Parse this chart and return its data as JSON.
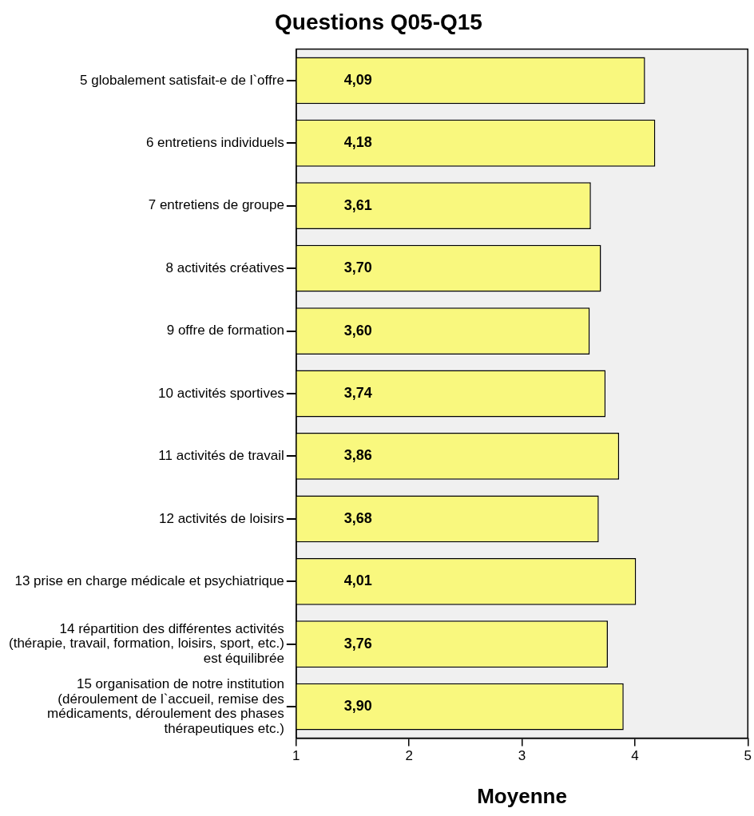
{
  "chart_data": {
    "type": "bar",
    "orientation": "horizontal",
    "title": "Questions Q05-Q15",
    "xlabel": "Moyenne",
    "categories": [
      "5 globalement satisfait-e de l`offre",
      "6 entretiens individuels",
      "7 entretiens de groupe",
      "8 activités créatives",
      "9 offre de formation",
      "10 activités sportives",
      "11 activités de travail",
      "12 activités de loisirs",
      "13 prise en charge médicale et psychiatrique",
      "14 répartition des différentes activités\n(thérapie, travail, formation, loisirs, sport, etc.)\nest équilibrée",
      "15 organisation de notre institution\n(déroulement de l`accueil, remise des\nmédicaments, déroulement des phases\nthérapeutiques etc.)"
    ],
    "values": [
      4.09,
      4.18,
      3.61,
      3.7,
      3.6,
      3.74,
      3.86,
      3.68,
      4.01,
      3.76,
      3.9
    ],
    "value_labels": [
      "4,09",
      "4,18",
      "3,61",
      "3,70",
      "3,60",
      "3,74",
      "3,86",
      "3,68",
      "4,01",
      "3,76",
      "3,90"
    ],
    "color": "#f9f87e",
    "xlim": [
      1,
      5
    ],
    "xticks": [
      1,
      2,
      3,
      4,
      5
    ],
    "grid": false,
    "legend": false
  }
}
